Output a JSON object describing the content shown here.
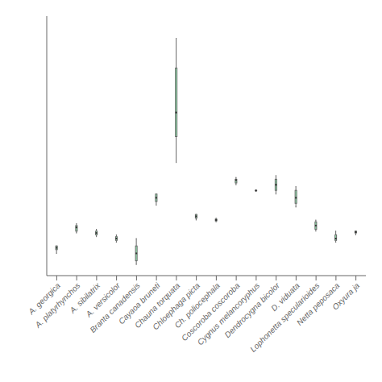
{
  "chart_data": {
    "type": "box",
    "categories": [
      "A. georgica",
      "A. platyrhynchos",
      "A. sibilatrix",
      "A. versicolor",
      "Branta canadensis",
      "Cayaoa bruneti",
      "Chauna torquata",
      "Chloephaga picta",
      "Ch. poliocephala",
      "Coscoroba coscoroba",
      "Cygnus melancoryphus",
      "Dendrocygna bicolor",
      "D. viduata",
      "Lophonetta specularioides",
      "Netta peposaca",
      "Oxyura ja"
    ],
    "boxes": [
      {
        "whislo": 3.42,
        "q1": 3.44,
        "med": 3.45,
        "q3": 3.46,
        "whishi": 3.46
      },
      {
        "whislo": 3.53,
        "q1": 3.54,
        "med": 3.56,
        "q3": 3.57,
        "whishi": 3.58
      },
      {
        "whislo": 3.51,
        "q1": 3.52,
        "med": 3.53,
        "q3": 3.54,
        "whishi": 3.55
      },
      {
        "whislo": 3.48,
        "q1": 3.49,
        "med": 3.5,
        "q3": 3.51,
        "whishi": 3.52
      },
      {
        "whislo": 3.36,
        "q1": 3.38,
        "med": 3.42,
        "q3": 3.46,
        "whishi": 3.5
      },
      {
        "whislo": 3.68,
        "q1": 3.7,
        "med": 3.72,
        "q3": 3.74,
        "whishi": 3.74
      },
      {
        "whislo": 3.91,
        "q1": 4.05,
        "med": 4.18,
        "q3": 4.42,
        "whishi": 4.58
      },
      {
        "whislo": 3.6,
        "q1": 3.61,
        "med": 3.62,
        "q3": 3.63,
        "whishi": 3.63
      },
      {
        "whislo": 3.59,
        "q1": 3.595,
        "med": 3.6,
        "q3": 3.605,
        "whishi": 3.61
      },
      {
        "whislo": 3.79,
        "q1": 3.8,
        "med": 3.815,
        "q3": 3.82,
        "whishi": 3.83
      },
      {
        "whislo": 3.755,
        "q1": 3.758,
        "med": 3.759,
        "q3": 3.76,
        "whishi": 3.762
      },
      {
        "whislo": 3.74,
        "q1": 3.76,
        "med": 3.79,
        "q3": 3.82,
        "whishi": 3.84
      },
      {
        "whislo": 3.67,
        "q1": 3.69,
        "med": 3.72,
        "q3": 3.76,
        "whishi": 3.78
      },
      {
        "whislo": 3.54,
        "q1": 3.55,
        "med": 3.57,
        "q3": 3.59,
        "whishi": 3.6
      },
      {
        "whislo": 3.48,
        "q1": 3.49,
        "med": 3.5,
        "q3": 3.52,
        "whishi": 3.54
      },
      {
        "whislo": 3.52,
        "q1": 3.53,
        "med": 3.535,
        "q3": 3.54,
        "whishi": 3.54
      }
    ],
    "color": "#98f0b8",
    "ylim": [
      3.3,
      4.7
    ],
    "grid": false,
    "tick_labels": "x"
  }
}
